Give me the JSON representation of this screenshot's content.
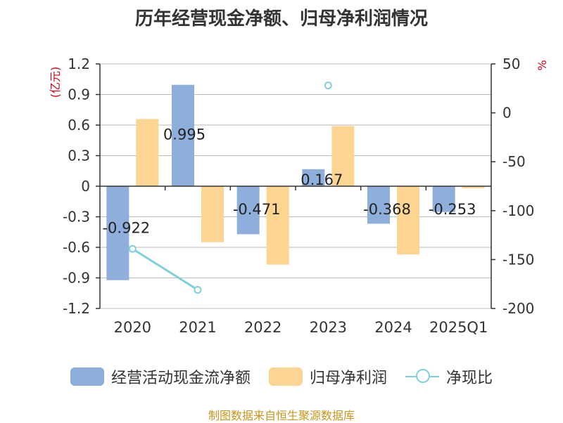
{
  "colors": {
    "cashflow": "#8eaedc",
    "profit": "#fdd593",
    "ratio": "#7fd0d8",
    "unit": "#d0021b",
    "source": "#c8961e",
    "axis": "#333333",
    "grid": "#bbbbbb"
  },
  "chart_data": {
    "type": "bar",
    "title": "历年经营现金净额、归母净利润情况",
    "left_unit": "(亿元)",
    "right_unit": "%",
    "categories": [
      "2020",
      "2021",
      "2022",
      "2023",
      "2024",
      "2025Q1"
    ],
    "y_left": {
      "min": -1.2,
      "max": 1.2,
      "ticks": [
        "1.2",
        "0.9",
        "0.6",
        "0.3",
        "0",
        "-0.3",
        "-0.6",
        "-0.9",
        "-1.2"
      ]
    },
    "y_right": {
      "min": -200,
      "max": 50,
      "ticks": [
        "50",
        "0",
        "-50",
        "-100",
        "-150",
        "-200"
      ]
    },
    "grid": true,
    "legend_position": "bottom",
    "series": [
      {
        "name": "经营活动现金流净额",
        "type": "bar",
        "axis": "left",
        "values": [
          -0.922,
          0.995,
          -0.471,
          0.167,
          -0.368,
          -0.253
        ],
        "labels": [
          "-0.922",
          "0.995",
          "-0.471",
          "0.167",
          "-0.368",
          "-0.253"
        ]
      },
      {
        "name": "归母净利润",
        "type": "bar",
        "axis": "left",
        "values": [
          0.66,
          -0.55,
          -0.77,
          0.59,
          -0.67,
          -0.02
        ]
      },
      {
        "name": "净现比",
        "type": "line",
        "axis": "right",
        "values": [
          -139,
          -181,
          null,
          28,
          null,
          null
        ]
      }
    ]
  },
  "legend": [
    {
      "label": "经营活动现金流净额",
      "kind": "bar",
      "color": "#8eaedc"
    },
    {
      "label": "归母净利润",
      "kind": "bar",
      "color": "#fdd593"
    },
    {
      "label": "净现比",
      "kind": "line",
      "color": "#7fd0d8"
    }
  ],
  "source": "制图数据来自恒生聚源数据库"
}
